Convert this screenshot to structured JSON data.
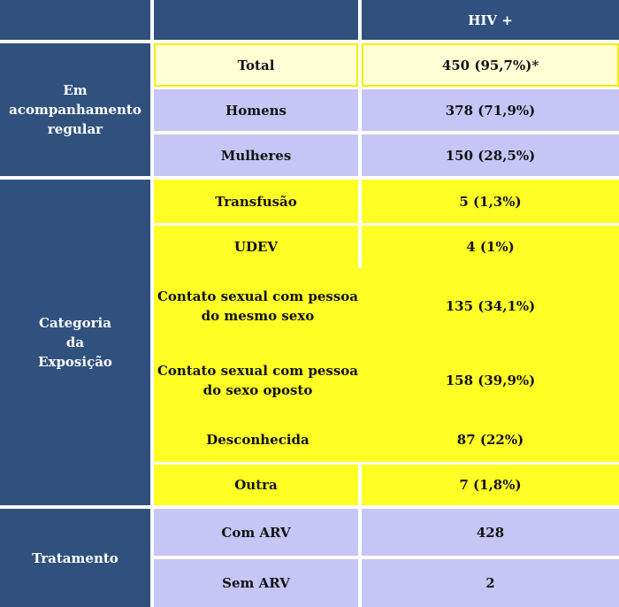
{
  "header": {
    "corner": "",
    "col_header": "HIV +"
  },
  "groups": {
    "acompanhamento": "Em\nacompanhamento\nregular",
    "exposicao": "Categoria\nda\nExposição",
    "tratamento": "Tratamento"
  },
  "rows": [
    {
      "label": "Total",
      "value": "450 (95,7%)*"
    },
    {
      "label": "Homens",
      "value": "378 (71,9%)"
    },
    {
      "label": "Mulheres",
      "value": "150 (28,5%)"
    },
    {
      "label": "Transfusão",
      "value": "5 (1,3%)"
    },
    {
      "label": "UDEV",
      "value": "4 (1%)"
    },
    {
      "label": "Contato sexual com pessoa\ndo mesmo sexo",
      "value": "135 (34,1%)"
    },
    {
      "label": "Contato sexual com pessoa\ndo sexo oposto",
      "value": "158 (39,9%)"
    },
    {
      "label": "Desconhecida",
      "value": "87 (22%)"
    },
    {
      "label": "Outra",
      "value": "7 (1,8%)"
    },
    {
      "label": "Com ARV",
      "value": "428"
    },
    {
      "label": "Sem ARV",
      "value": "2"
    }
  ],
  "colors": {
    "dark": "#30517e",
    "lavender": "#c7c5f5",
    "yellow": "#ffff26",
    "cream": "#ffffd6"
  }
}
